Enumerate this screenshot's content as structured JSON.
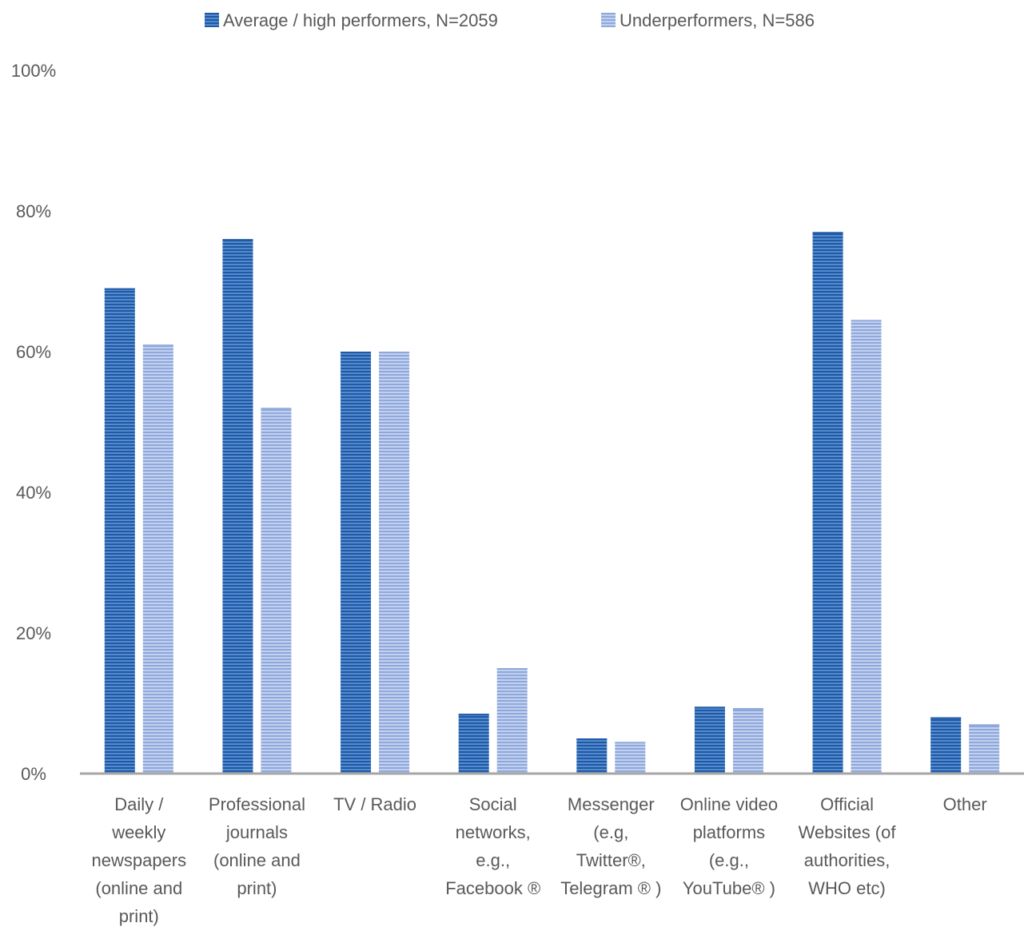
{
  "chart_data": {
    "type": "bar",
    "title": "",
    "xlabel": "",
    "ylabel": "",
    "ylim": [
      0,
      100
    ],
    "yticks": [
      "0%",
      "20%",
      "40%",
      "60%",
      "80%",
      "100%"
    ],
    "ytick_values": [
      0,
      20,
      40,
      60,
      80,
      100
    ],
    "grid": false,
    "legend_position": "top",
    "categories": [
      [
        "Daily /",
        "weekly",
        "newspapers",
        "(online and",
        "print)"
      ],
      [
        "Professional",
        "journals",
        "(online and",
        "print)"
      ],
      [
        "TV / Radio"
      ],
      [
        "Social",
        "networks,",
        "e.g.,",
        "Facebook ®"
      ],
      [
        "Messenger",
        "(e.g,",
        "Twitter®,",
        "Telegram ® )"
      ],
      [
        "Online video",
        "platforms",
        "(e.g.,",
        "YouTube® )"
      ],
      [
        "Official",
        "Websites (of",
        "authorities,",
        "WHO etc)"
      ],
      [
        "Other"
      ]
    ],
    "series": [
      {
        "name": "Average / high performers, N=2059",
        "color": "#2E6DB4",
        "values": [
          69,
          76,
          60,
          8.5,
          5,
          9.5,
          77,
          8
        ]
      },
      {
        "name": "Underperformers, N=586",
        "color": "#9DB3E0",
        "values": [
          61,
          52,
          60,
          15,
          4.5,
          9.3,
          64.5,
          7
        ]
      }
    ]
  }
}
